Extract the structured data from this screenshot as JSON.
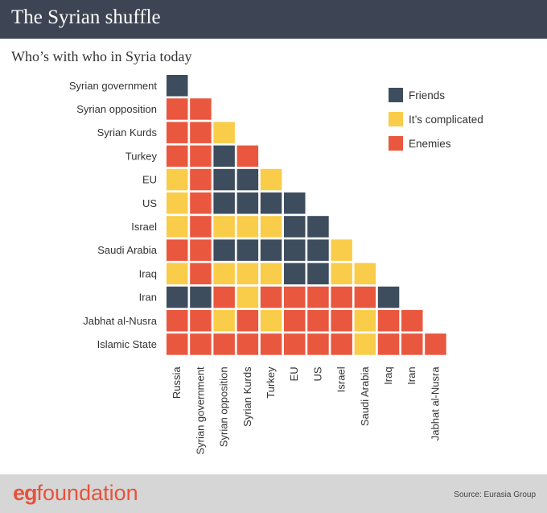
{
  "header": {
    "title": "The Syrian shuffle"
  },
  "subtitle": "Who’s with who in Syria today",
  "footer": {
    "logo_prefix": "eg",
    "logo_word": "foundation",
    "source": "Source: Eurasia Group"
  },
  "colors": {
    "friends": "#3d4d5e",
    "complicated": "#f9cc4a",
    "enemies": "#e9573f",
    "header_bg": "#3d4554",
    "footer_bg": "#d6d6d6"
  },
  "chart_data": {
    "type": "heatmap",
    "rows": [
      "Syrian government",
      "Syrian opposition",
      "Syrian Kurds",
      "Turkey",
      "EU",
      "US",
      "Israel",
      "Saudi Arabia",
      "Iraq",
      "Iran",
      "Jabhat al-Nusra",
      "Islamic State"
    ],
    "columns": [
      "Russia",
      "Syrian government",
      "Syrian opposition",
      "Syrian Kurds",
      "Turkey",
      "EU",
      "US",
      "Israel",
      "Saudi Arabia",
      "Iraq",
      "Iran",
      "Jabhat al-Nusra"
    ],
    "legend": [
      {
        "key": "F",
        "label": "Friends"
      },
      {
        "key": "C",
        "label": "It’s complicated"
      },
      {
        "key": "E",
        "label": "Enemies"
      }
    ],
    "legend_position": "top-right",
    "cells": [
      [
        "F"
      ],
      [
        "E",
        "E"
      ],
      [
        "E",
        "E",
        "C"
      ],
      [
        "E",
        "E",
        "F",
        "E"
      ],
      [
        "C",
        "E",
        "F",
        "F",
        "C"
      ],
      [
        "C",
        "E",
        "F",
        "F",
        "F",
        "F"
      ],
      [
        "C",
        "E",
        "C",
        "C",
        "C",
        "F",
        "F"
      ],
      [
        "E",
        "E",
        "F",
        "F",
        "F",
        "F",
        "F",
        "C"
      ],
      [
        "C",
        "E",
        "C",
        "C",
        "C",
        "F",
        "F",
        "C",
        "C"
      ],
      [
        "F",
        "F",
        "E",
        "C",
        "E",
        "E",
        "E",
        "E",
        "E",
        "F"
      ],
      [
        "E",
        "E",
        "C",
        "E",
        "C",
        "E",
        "E",
        "E",
        "C",
        "E",
        "E"
      ],
      [
        "E",
        "E",
        "E",
        "E",
        "E",
        "E",
        "E",
        "E",
        "C",
        "E",
        "E",
        "E"
      ]
    ]
  }
}
